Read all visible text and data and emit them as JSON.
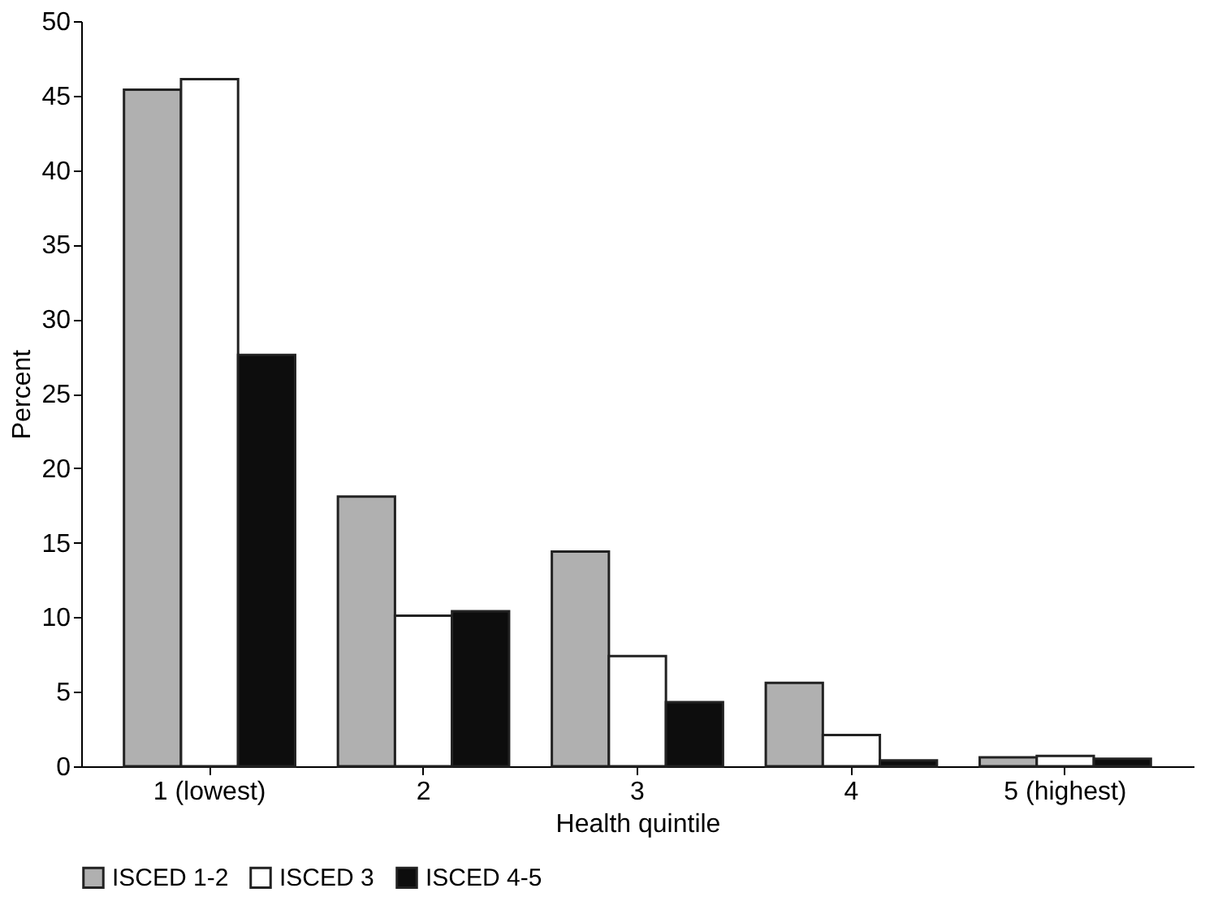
{
  "chart_data": {
    "type": "bar",
    "xlabel": "Health quintile",
    "ylabel": "Percent",
    "categories": [
      "1 (lowest)",
      "2",
      "3",
      "4",
      "5 (highest)"
    ],
    "series": [
      {
        "name": "ISCED 1-2",
        "color": "#b0b0b0",
        "values": [
          45.4,
          18.1,
          14.4,
          5.6,
          0.6
        ]
      },
      {
        "name": "ISCED 3",
        "color": "#ffffff",
        "values": [
          46.1,
          10.1,
          7.4,
          2.1,
          0.7
        ]
      },
      {
        "name": "ISCED 4-5",
        "color": "#0d0d0d",
        "values": [
          27.6,
          10.4,
          4.3,
          0.4,
          0.5
        ]
      }
    ],
    "ylim": [
      0,
      50
    ],
    "yticks": [
      0,
      5,
      10,
      15,
      20,
      25,
      30,
      35,
      40,
      45,
      50
    ],
    "grid": false,
    "legend": "bottom"
  }
}
